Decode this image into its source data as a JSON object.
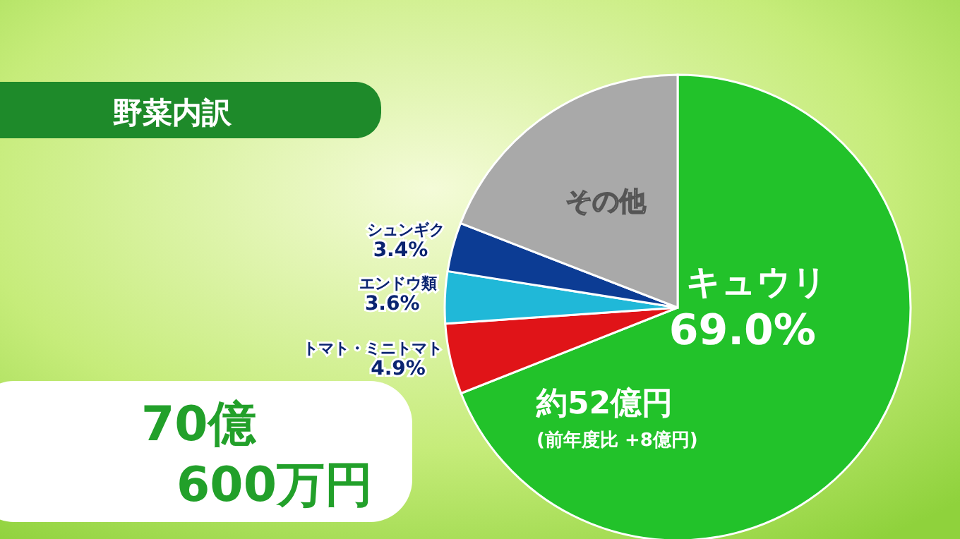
{
  "chart_data": {
    "type": "pie",
    "title": "野菜内訳",
    "categories": [
      "キュウリ",
      "トマト・ミニトマト",
      "エンドウ類",
      "シュンギク",
      "その他"
    ],
    "values": [
      69.0,
      4.9,
      3.6,
      3.4,
      19.1
    ],
    "colors": [
      "#22c22a",
      "#e01418",
      "#20b8d8",
      "#0c3c94",
      "#a9a9a9"
    ],
    "value_labels": [
      "69.0%",
      "4.9%",
      "3.6%",
      "3.4%",
      null
    ],
    "annotations": [
      "70億 600万円",
      "約52億円",
      "(前年度比 +8億円)"
    ]
  }
}
